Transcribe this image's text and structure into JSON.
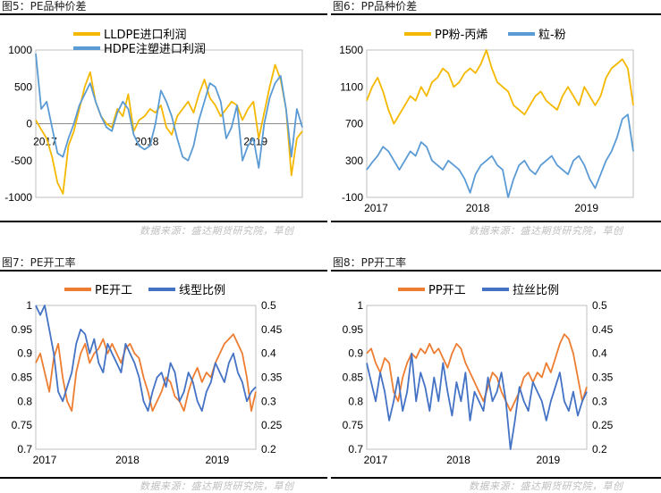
{
  "source_text": "数据来源：盛达期货研究院，草创",
  "chart_data": [
    {
      "id": "c5",
      "type": "line",
      "title": "图5：PE品种价差",
      "y_axis": {
        "min": -1000,
        "max": 1000,
        "ticks": [
          -1000,
          -500,
          0,
          500,
          1000
        ]
      },
      "x_tick_labels": [
        "2017",
        "2018",
        "2019"
      ],
      "x_range": [
        2017.0,
        2019.45
      ],
      "x_axis_at_zero": true,
      "legend_position": "top-center",
      "series": [
        {
          "name": "LLDPE进口利润",
          "color": "#f5b800",
          "x": [
            2017.0,
            2017.05,
            2017.1,
            2017.15,
            2017.2,
            2017.25,
            2017.3,
            2017.35,
            2017.4,
            2017.45,
            2017.5,
            2017.55,
            2017.6,
            2017.65,
            2017.7,
            2017.75,
            2017.8,
            2017.85,
            2017.9,
            2017.95,
            2018.0,
            2018.05,
            2018.1,
            2018.15,
            2018.2,
            2018.25,
            2018.3,
            2018.35,
            2018.4,
            2018.45,
            2018.5,
            2018.55,
            2018.6,
            2018.65,
            2018.7,
            2018.75,
            2018.8,
            2018.85,
            2018.9,
            2018.95,
            2019.0,
            2019.05,
            2019.1,
            2019.15,
            2019.2,
            2019.25,
            2019.3,
            2019.35,
            2019.4,
            2019.45
          ],
          "values": [
            50,
            -80,
            -200,
            -450,
            -800,
            -950,
            -300,
            -100,
            200,
            500,
            700,
            300,
            100,
            0,
            -50,
            200,
            100,
            400,
            -100,
            50,
            100,
            200,
            150,
            250,
            -50,
            -150,
            100,
            200,
            300,
            150,
            400,
            600,
            350,
            250,
            100,
            200,
            300,
            250,
            50,
            200,
            300,
            -200,
            150,
            500,
            800,
            600,
            200,
            -700,
            -200,
            -100
          ]
        },
        {
          "name": "HDPE注塑进口利润",
          "color": "#5b9bd5",
          "x": [
            2017.0,
            2017.05,
            2017.1,
            2017.15,
            2017.2,
            2017.25,
            2017.3,
            2017.35,
            2017.4,
            2017.45,
            2017.5,
            2017.55,
            2017.6,
            2017.65,
            2017.7,
            2017.75,
            2017.8,
            2017.85,
            2017.9,
            2017.95,
            2018.0,
            2018.05,
            2018.1,
            2018.15,
            2018.2,
            2018.25,
            2018.3,
            2018.35,
            2018.4,
            2018.45,
            2018.5,
            2018.55,
            2018.6,
            2018.65,
            2018.7,
            2018.75,
            2018.8,
            2018.85,
            2018.9,
            2018.95,
            2019.0,
            2019.05,
            2019.1,
            2019.15,
            2019.2,
            2019.25,
            2019.3,
            2019.35,
            2019.4,
            2019.45
          ],
          "values": [
            950,
            200,
            300,
            -50,
            -400,
            -450,
            -200,
            0,
            250,
            400,
            550,
            300,
            100,
            -50,
            -100,
            150,
            300,
            200,
            -150,
            -300,
            -350,
            -300,
            0,
            450,
            300,
            100,
            -200,
            -450,
            -500,
            -300,
            50,
            300,
            550,
            500,
            300,
            -200,
            -50,
            250,
            -500,
            -300,
            -200,
            -600,
            0,
            350,
            550,
            650,
            200,
            -450,
            200,
            -50
          ]
        }
      ]
    },
    {
      "id": "c6",
      "type": "line",
      "title": "图6：PP品种价差",
      "y_axis": {
        "min": -100,
        "max": 1500,
        "ticks": [
          -100,
          300,
          700,
          1100,
          1500
        ]
      },
      "x_tick_labels": [
        "2017",
        "2018",
        "2019"
      ],
      "x_range": [
        2017.0,
        2019.45
      ],
      "legend_position": "top-center",
      "series": [
        {
          "name": "PP粉-丙烯",
          "color": "#f5b800",
          "x": [
            2017.0,
            2017.05,
            2017.1,
            2017.15,
            2017.2,
            2017.25,
            2017.3,
            2017.35,
            2017.4,
            2017.45,
            2017.5,
            2017.55,
            2017.6,
            2017.65,
            2017.7,
            2017.75,
            2017.8,
            2017.85,
            2017.9,
            2017.95,
            2018.0,
            2018.05,
            2018.1,
            2018.15,
            2018.2,
            2018.25,
            2018.3,
            2018.35,
            2018.4,
            2018.45,
            2018.5,
            2018.55,
            2018.6,
            2018.65,
            2018.7,
            2018.75,
            2018.8,
            2018.85,
            2018.9,
            2018.95,
            2019.0,
            2019.05,
            2019.1,
            2019.15,
            2019.2,
            2019.25,
            2019.3,
            2019.35,
            2019.4,
            2019.45
          ],
          "values": [
            950,
            1100,
            1200,
            1050,
            850,
            700,
            800,
            900,
            1000,
            950,
            1100,
            1000,
            1150,
            1200,
            1300,
            1250,
            1100,
            1150,
            1250,
            1300,
            1250,
            1350,
            1500,
            1300,
            1150,
            1100,
            1050,
            900,
            850,
            800,
            900,
            1000,
            1050,
            950,
            900,
            850,
            1000,
            1100,
            1000,
            900,
            1100,
            1000,
            900,
            1000,
            1200,
            1300,
            1350,
            1400,
            1300,
            900
          ]
        },
        {
          "name": "粒-粉",
          "color": "#5b9bd5",
          "x": [
            2017.0,
            2017.05,
            2017.1,
            2017.15,
            2017.2,
            2017.25,
            2017.3,
            2017.35,
            2017.4,
            2017.45,
            2017.5,
            2017.55,
            2017.6,
            2017.65,
            2017.7,
            2017.75,
            2017.8,
            2017.85,
            2017.9,
            2017.95,
            2018.0,
            2018.05,
            2018.1,
            2018.15,
            2018.2,
            2018.25,
            2018.3,
            2018.35,
            2018.4,
            2018.45,
            2018.5,
            2018.55,
            2018.6,
            2018.65,
            2018.7,
            2018.75,
            2018.8,
            2018.85,
            2018.9,
            2018.95,
            2019.0,
            2019.05,
            2019.1,
            2019.15,
            2019.2,
            2019.25,
            2019.3,
            2019.35,
            2019.4,
            2019.45
          ],
          "values": [
            200,
            280,
            350,
            450,
            400,
            300,
            200,
            300,
            400,
            350,
            500,
            450,
            300,
            250,
            200,
            300,
            250,
            200,
            100,
            -50,
            150,
            250,
            300,
            350,
            250,
            200,
            -100,
            100,
            250,
            300,
            200,
            150,
            250,
            300,
            350,
            250,
            200,
            150,
            300,
            350,
            250,
            100,
            0,
            150,
            300,
            400,
            550,
            750,
            800,
            400
          ]
        }
      ]
    },
    {
      "id": "c7",
      "type": "line",
      "title": "图7：PE开工率",
      "y_axis": {
        "min": 0.7,
        "max": 1.0,
        "ticks": [
          0.7,
          0.75,
          0.8,
          0.85,
          0.9,
          0.95,
          1.0
        ]
      },
      "y2_axis": {
        "min": 0.2,
        "max": 0.5,
        "ticks": [
          0.2,
          0.25,
          0.3,
          0.35,
          0.4,
          0.45,
          0.5
        ]
      },
      "x_tick_labels": [
        "2017",
        "2018",
        "2019"
      ],
      "x_range": [
        2017.0,
        2019.45
      ],
      "legend_position": "top-center",
      "series": [
        {
          "name": "PE开工",
          "color": "#ed7d31",
          "axis": "left",
          "x": [
            2017.0,
            2017.05,
            2017.1,
            2017.15,
            2017.2,
            2017.25,
            2017.3,
            2017.35,
            2017.4,
            2017.45,
            2017.5,
            2017.55,
            2017.6,
            2017.65,
            2017.7,
            2017.75,
            2017.8,
            2017.85,
            2017.9,
            2017.95,
            2018.0,
            2018.05,
            2018.1,
            2018.15,
            2018.2,
            2018.25,
            2018.3,
            2018.35,
            2018.4,
            2018.45,
            2018.5,
            2018.55,
            2018.6,
            2018.65,
            2018.7,
            2018.75,
            2018.8,
            2018.85,
            2018.9,
            2018.95,
            2019.0,
            2019.05,
            2019.1,
            2019.15,
            2019.2,
            2019.25,
            2019.3,
            2019.35,
            2019.4,
            2019.45
          ],
          "values": [
            0.88,
            0.9,
            0.86,
            0.82,
            0.89,
            0.92,
            0.85,
            0.8,
            0.78,
            0.86,
            0.9,
            0.92,
            0.88,
            0.9,
            0.91,
            0.93,
            0.9,
            0.92,
            0.9,
            0.88,
            0.91,
            0.92,
            0.9,
            0.89,
            0.85,
            0.82,
            0.78,
            0.8,
            0.82,
            0.85,
            0.84,
            0.81,
            0.8,
            0.78,
            0.82,
            0.85,
            0.87,
            0.84,
            0.86,
            0.85,
            0.88,
            0.9,
            0.92,
            0.93,
            0.94,
            0.92,
            0.9,
            0.85,
            0.78,
            0.82
          ]
        },
        {
          "name": "线型比例",
          "color": "#4472c4",
          "axis": "right",
          "x": [
            2017.0,
            2017.05,
            2017.1,
            2017.15,
            2017.2,
            2017.25,
            2017.3,
            2017.35,
            2017.4,
            2017.45,
            2017.5,
            2017.55,
            2017.6,
            2017.65,
            2017.7,
            2017.75,
            2017.8,
            2017.85,
            2017.9,
            2017.95,
            2018.0,
            2018.05,
            2018.1,
            2018.15,
            2018.2,
            2018.25,
            2018.3,
            2018.35,
            2018.4,
            2018.45,
            2018.5,
            2018.55,
            2018.6,
            2018.65,
            2018.7,
            2018.75,
            2018.8,
            2018.85,
            2018.9,
            2018.95,
            2019.0,
            2019.05,
            2019.1,
            2019.15,
            2019.2,
            2019.25,
            2019.3,
            2019.35,
            2019.4,
            2019.45
          ],
          "values": [
            0.5,
            0.48,
            0.5,
            0.45,
            0.4,
            0.32,
            0.3,
            0.33,
            0.36,
            0.42,
            0.45,
            0.44,
            0.4,
            0.43,
            0.38,
            0.36,
            0.42,
            0.4,
            0.38,
            0.36,
            0.42,
            0.4,
            0.38,
            0.35,
            0.3,
            0.28,
            0.32,
            0.35,
            0.36,
            0.33,
            0.38,
            0.36,
            0.3,
            0.32,
            0.36,
            0.34,
            0.3,
            0.28,
            0.32,
            0.34,
            0.38,
            0.36,
            0.34,
            0.38,
            0.4,
            0.36,
            0.34,
            0.3,
            0.32,
            0.33
          ]
        }
      ]
    },
    {
      "id": "c8",
      "type": "line",
      "title": "图8：PP开工率",
      "y_axis": {
        "min": 0.7,
        "max": 1.0,
        "ticks": [
          0.7,
          0.75,
          0.8,
          0.85,
          0.9,
          0.95,
          1.0
        ]
      },
      "y2_axis": {
        "min": 0.2,
        "max": 0.5,
        "ticks": [
          0.2,
          0.25,
          0.3,
          0.35,
          0.4,
          0.45,
          0.5
        ]
      },
      "x_tick_labels": [
        "2017",
        "2018",
        "2019"
      ],
      "x_range": [
        2017.0,
        2019.45
      ],
      "legend_position": "top-center",
      "series": [
        {
          "name": "PP开工",
          "color": "#ed7d31",
          "axis": "left",
          "x": [
            2017.0,
            2017.05,
            2017.1,
            2017.15,
            2017.2,
            2017.25,
            2017.3,
            2017.35,
            2017.4,
            2017.45,
            2017.5,
            2017.55,
            2017.6,
            2017.65,
            2017.7,
            2017.75,
            2017.8,
            2017.85,
            2017.9,
            2017.95,
            2018.0,
            2018.05,
            2018.1,
            2018.15,
            2018.2,
            2018.25,
            2018.3,
            2018.35,
            2018.4,
            2018.45,
            2018.5,
            2018.55,
            2018.6,
            2018.65,
            2018.7,
            2018.75,
            2018.8,
            2018.85,
            2018.9,
            2018.95,
            2019.0,
            2019.05,
            2019.1,
            2019.15,
            2019.2,
            2019.25,
            2019.3,
            2019.35,
            2019.4,
            2019.45
          ],
          "values": [
            0.9,
            0.91,
            0.88,
            0.86,
            0.89,
            0.88,
            0.82,
            0.8,
            0.85,
            0.88,
            0.9,
            0.89,
            0.91,
            0.9,
            0.92,
            0.9,
            0.91,
            0.89,
            0.87,
            0.9,
            0.92,
            0.91,
            0.88,
            0.86,
            0.84,
            0.82,
            0.8,
            0.83,
            0.86,
            0.85,
            0.82,
            0.8,
            0.78,
            0.8,
            0.82,
            0.85,
            0.86,
            0.84,
            0.86,
            0.85,
            0.88,
            0.86,
            0.89,
            0.92,
            0.94,
            0.93,
            0.9,
            0.85,
            0.8,
            0.83
          ]
        },
        {
          "name": "拉丝比例",
          "color": "#4472c4",
          "axis": "right",
          "x": [
            2017.0,
            2017.05,
            2017.1,
            2017.15,
            2017.2,
            2017.25,
            2017.3,
            2017.35,
            2017.4,
            2017.45,
            2017.5,
            2017.55,
            2017.6,
            2017.65,
            2017.7,
            2017.75,
            2017.8,
            2017.85,
            2017.9,
            2017.95,
            2018.0,
            2018.05,
            2018.1,
            2018.15,
            2018.2,
            2018.25,
            2018.3,
            2018.35,
            2018.4,
            2018.45,
            2018.5,
            2018.55,
            2018.6,
            2018.65,
            2018.7,
            2018.75,
            2018.8,
            2018.85,
            2018.9,
            2018.95,
            2019.0,
            2019.05,
            2019.1,
            2019.15,
            2019.2,
            2019.25,
            2019.3,
            2019.35,
            2019.4,
            2019.45
          ],
          "values": [
            0.38,
            0.34,
            0.3,
            0.36,
            0.32,
            0.26,
            0.3,
            0.35,
            0.28,
            0.32,
            0.4,
            0.3,
            0.36,
            0.33,
            0.28,
            0.35,
            0.3,
            0.38,
            0.32,
            0.27,
            0.34,
            0.3,
            0.36,
            0.26,
            0.32,
            0.3,
            0.28,
            0.35,
            0.3,
            0.32,
            0.36,
            0.3,
            0.2,
            0.26,
            0.33,
            0.3,
            0.28,
            0.34,
            0.32,
            0.3,
            0.26,
            0.3,
            0.33,
            0.36,
            0.3,
            0.28,
            0.32,
            0.27,
            0.3,
            0.32
          ]
        }
      ]
    }
  ]
}
